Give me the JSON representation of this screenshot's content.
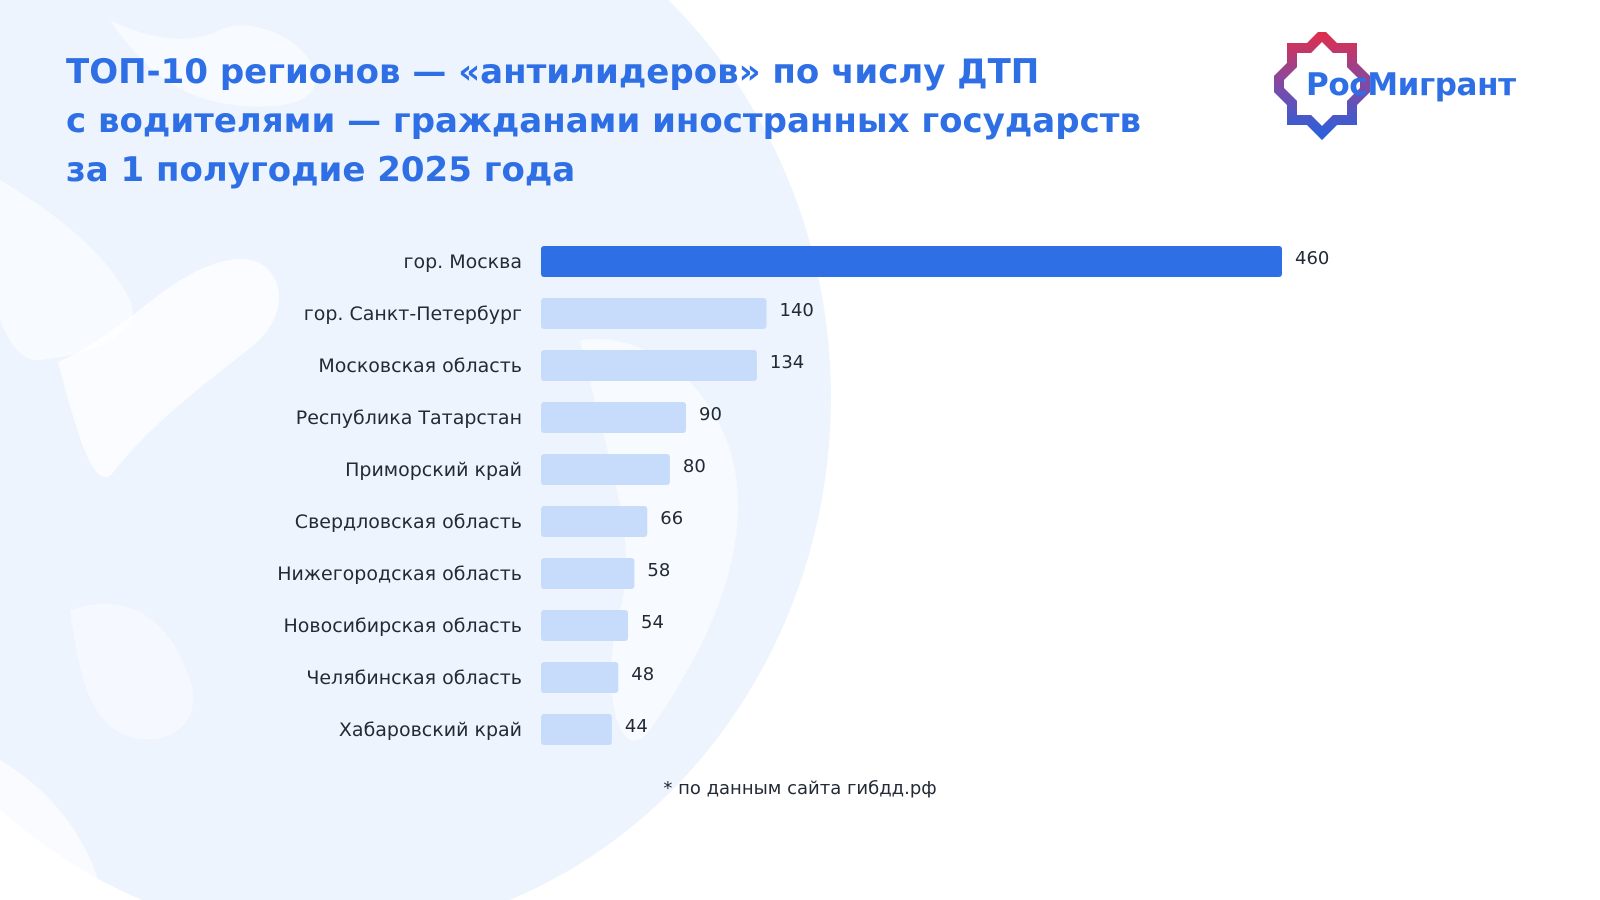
{
  "title": {
    "line1": "ТОП-10 регионов — «антилидеров» по числу ДТП",
    "line2": "с водителями — гражданами иностранных государств",
    "line3": "за 1 полугодие 2025 года"
  },
  "logo": {
    "text": "РосМигрант",
    "colors": {
      "text": "#2f6fe5",
      "frame_top": "#dc2f4f",
      "frame_mid": "#7f4aa7",
      "frame_bottom": "#2f5fd8"
    }
  },
  "footnote": "* по данным сайта гибдд.рф",
  "colors": {
    "accent": "#2f6fe5",
    "bar_primary": "#2f6fe5",
    "bar_secondary": "#c7dcfb",
    "label_text": "#222a36",
    "background": "#ffffff",
    "globe": "#eef4fd"
  },
  "chart_data": {
    "type": "bar",
    "orientation": "horizontal",
    "categories": [
      "гор. Москва",
      "гор. Санкт-Петербург",
      "Московская область",
      "Республика Татарстан",
      "Приморский край",
      "Свердловская область",
      "Нижегородская область",
      "Новосибирская область",
      "Челябинская область",
      "Хабаровский край"
    ],
    "values": [
      460,
      140,
      134,
      90,
      80,
      66,
      58,
      54,
      48,
      44
    ],
    "highlight_index": 0,
    "title": "ТОП-10 регионов — «антилидеров» по числу ДТП с водителями — гражданами иностранных государств за 1 полугодие 2025 года",
    "xlabel": "",
    "ylabel": "",
    "xlim": [
      0,
      460
    ],
    "grid": false,
    "legend": "none",
    "data_labels": true
  }
}
